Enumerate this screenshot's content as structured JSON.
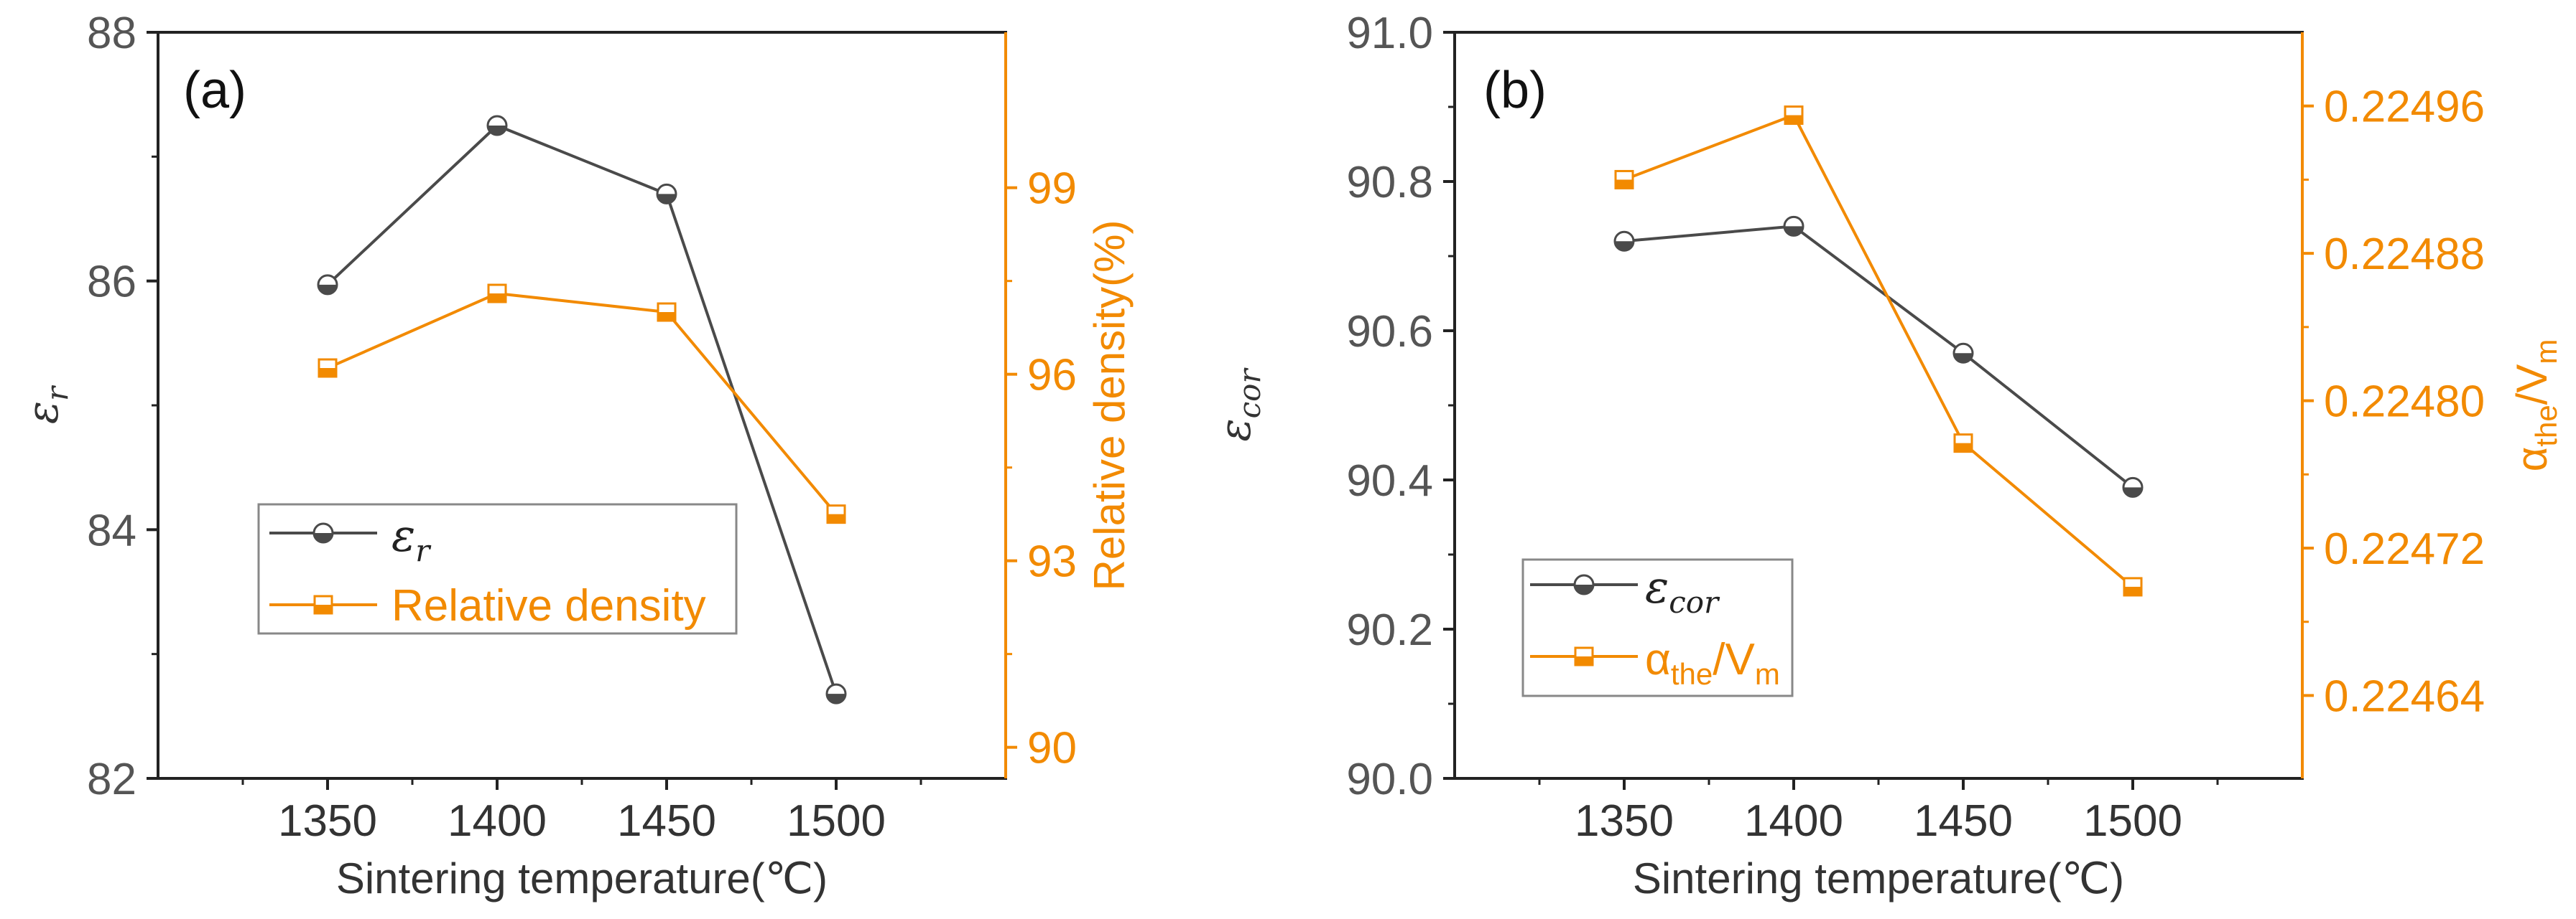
{
  "colors": {
    "series1": "#4a4a4a",
    "series2": "#f28a00",
    "axis": "#222222",
    "right_axis": "#f28a00"
  },
  "chart_data": [
    {
      "type": "line",
      "panel_label": "(a)",
      "xlabel": "Sintering temperature(℃)",
      "x": [
        1350,
        1400,
        1450,
        1500
      ],
      "x_ticks": [
        "1350",
        "1400",
        "1450",
        "1500"
      ],
      "xlim": [
        1300,
        1550
      ],
      "ylabel_left": "ε",
      "ylabel_left_sub": "r",
      "ylim_left": [
        82,
        88
      ],
      "yticks_left": [
        "82",
        "84",
        "86",
        "88"
      ],
      "ylabel_right": "Relative density(%)",
      "ylim_right": [
        89.5,
        101.5
      ],
      "yticks_right": [
        "90",
        "93",
        "96",
        "99"
      ],
      "series": [
        {
          "name": "ε",
          "name_sub": "r",
          "axis": "left",
          "marker": "circle-half",
          "values": [
            85.97,
            87.25,
            86.7,
            82.68
          ]
        },
        {
          "name": "Relative density",
          "axis": "right",
          "marker": "square-half",
          "values": [
            96.1,
            97.3,
            97.0,
            93.75
          ]
        }
      ],
      "legend": "lower-left"
    },
    {
      "type": "line",
      "panel_label": "(b)",
      "xlabel": "Sintering temperature(℃)",
      "x": [
        1350,
        1400,
        1450,
        1500
      ],
      "x_ticks": [
        "1350",
        "1400",
        "1450",
        "1500"
      ],
      "xlim": [
        1300,
        1550
      ],
      "ylabel_left": "ε",
      "ylabel_left_sub": "cor",
      "ylim_left": [
        90.0,
        91.0
      ],
      "yticks_left": [
        "90.0",
        "90.2",
        "90.4",
        "90.6",
        "90.8",
        "91.0"
      ],
      "ylabel_right": "α",
      "ylabel_right_sub": "the",
      "ylabel_right_mid": "/V",
      "ylabel_right_sub2": "m",
      "ylim_right": [
        0.224595,
        0.225
      ],
      "yticks_right": [
        "0.22464",
        "0.22472",
        "0.22480",
        "0.22488",
        "0.22496"
      ],
      "series": [
        {
          "name": "ε",
          "name_sub": "cor",
          "axis": "left",
          "marker": "circle-half",
          "values": [
            90.72,
            90.74,
            90.57,
            90.39
          ]
        },
        {
          "name": "α",
          "name_sub": "the",
          "name_mid": "/V",
          "name_sub2": "m",
          "axis": "right",
          "marker": "square-half",
          "values": [
            0.22492,
            0.224955,
            0.224777,
            0.224699
          ]
        }
      ],
      "legend": "lower-left"
    }
  ]
}
